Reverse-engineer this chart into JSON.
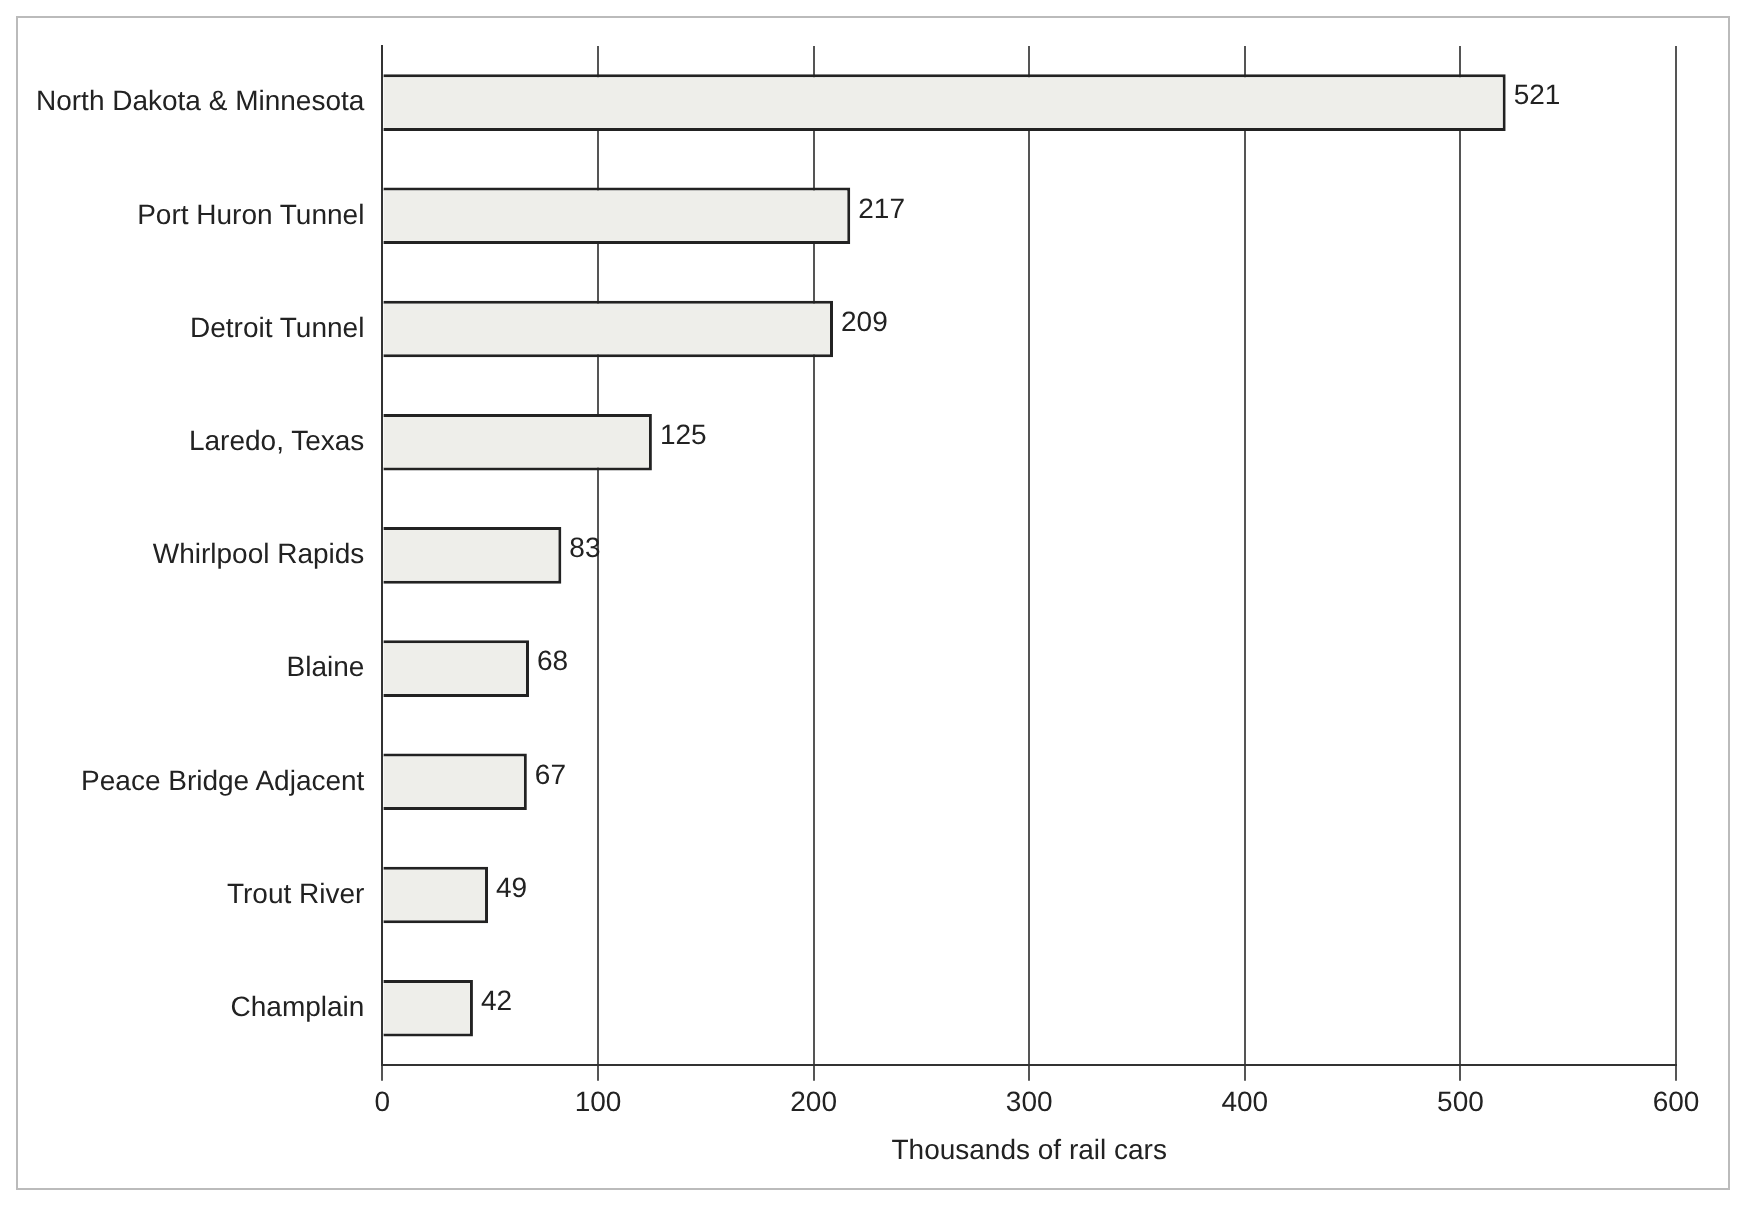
{
  "chart_data": {
    "type": "bar",
    "orientation": "horizontal",
    "xlabel": "Thousands of rail cars",
    "categories": [
      "North Dakota & Minnesota",
      "Port Huron Tunnel",
      "Detroit Tunnel",
      "Laredo, Texas",
      "Whirlpool Rapids",
      "Blaine",
      "Peace Bridge Adjacent",
      "Trout River",
      "Champlain"
    ],
    "values": [
      521,
      217,
      209,
      125,
      83,
      68,
      67,
      49,
      42
    ],
    "color": "#eeeeea",
    "xlim": [
      0,
      600
    ],
    "xticks": [
      0,
      100,
      200,
      300,
      400,
      500,
      600
    ],
    "grid": "x",
    "data_labels": true
  }
}
